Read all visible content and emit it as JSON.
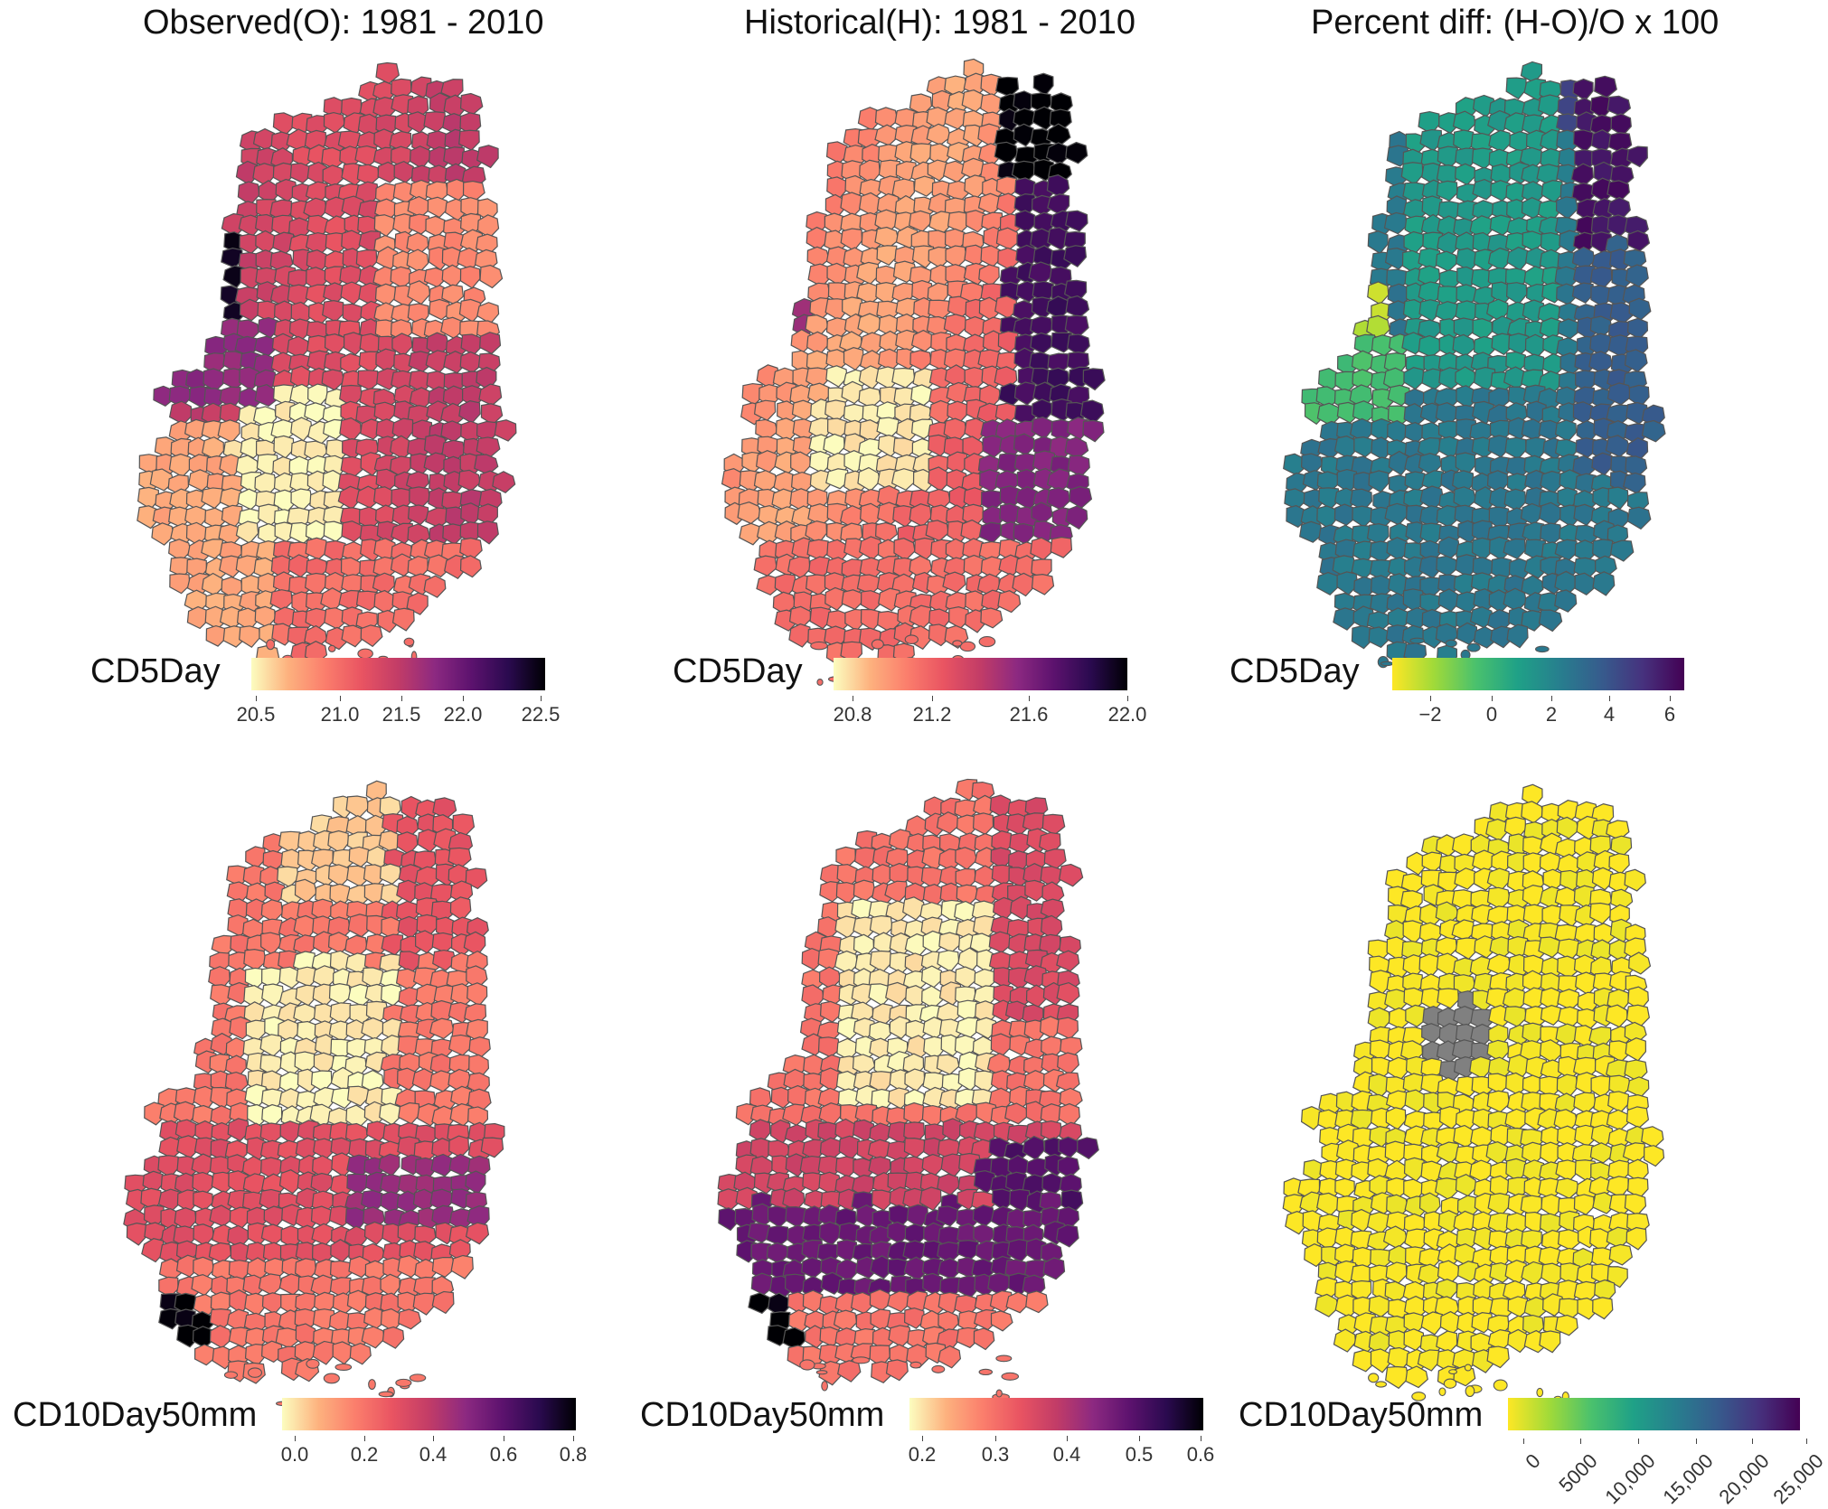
{
  "titles": {
    "observed": "Observed(O): 1981 - 2010",
    "historical": "Historical(H): 1981 - 2010",
    "diff": "Percent diff: (H-O)/O x 100"
  },
  "rows": [
    {
      "variable": "CD5Day",
      "panels": [
        {
          "legend": "CD5Day",
          "palette": "magma_r",
          "ticks": [
            "20.5",
            "21.0",
            "21.5",
            "22.0",
            "22.5"
          ]
        },
        {
          "legend": "CD5Day",
          "palette": "magma_r",
          "ticks": [
            "20.8",
            "21.2",
            "21.6",
            "22.0"
          ]
        },
        {
          "legend": "CD5Day",
          "palette": "viridis_r",
          "ticks": [
            "−2",
            "0",
            "2",
            "4",
            "6"
          ]
        }
      ]
    },
    {
      "variable": "CD10Day50mm",
      "panels": [
        {
          "legend": "CD10Day50mm",
          "palette": "magma_r",
          "ticks": [
            "0.0",
            "0.2",
            "0.4",
            "0.6",
            "0.8"
          ]
        },
        {
          "legend": "CD10Day50mm",
          "palette": "magma_r",
          "ticks": [
            "0.2",
            "0.3",
            "0.4",
            "0.5",
            "0.6"
          ]
        },
        {
          "legend": "CD10Day50mm",
          "palette": "viridis_r",
          "ticks": [
            "0",
            "5000",
            "10,000",
            "15,000",
            "20,000",
            "25,000"
          ]
        }
      ]
    }
  ],
  "colors": {
    "magma": [
      "#fcfdbf",
      "#fdb17e",
      "#fb7e6c",
      "#e95462",
      "#c23c67",
      "#8c2981",
      "#5c126e",
      "#2a0a4f",
      "#000004"
    ],
    "viridis": [
      "#fde725",
      "#a0da39",
      "#4ac16d",
      "#1fa187",
      "#277f8e",
      "#365c8d",
      "#46327e",
      "#440154"
    ],
    "border": "#555555",
    "missing": "#808080"
  }
}
